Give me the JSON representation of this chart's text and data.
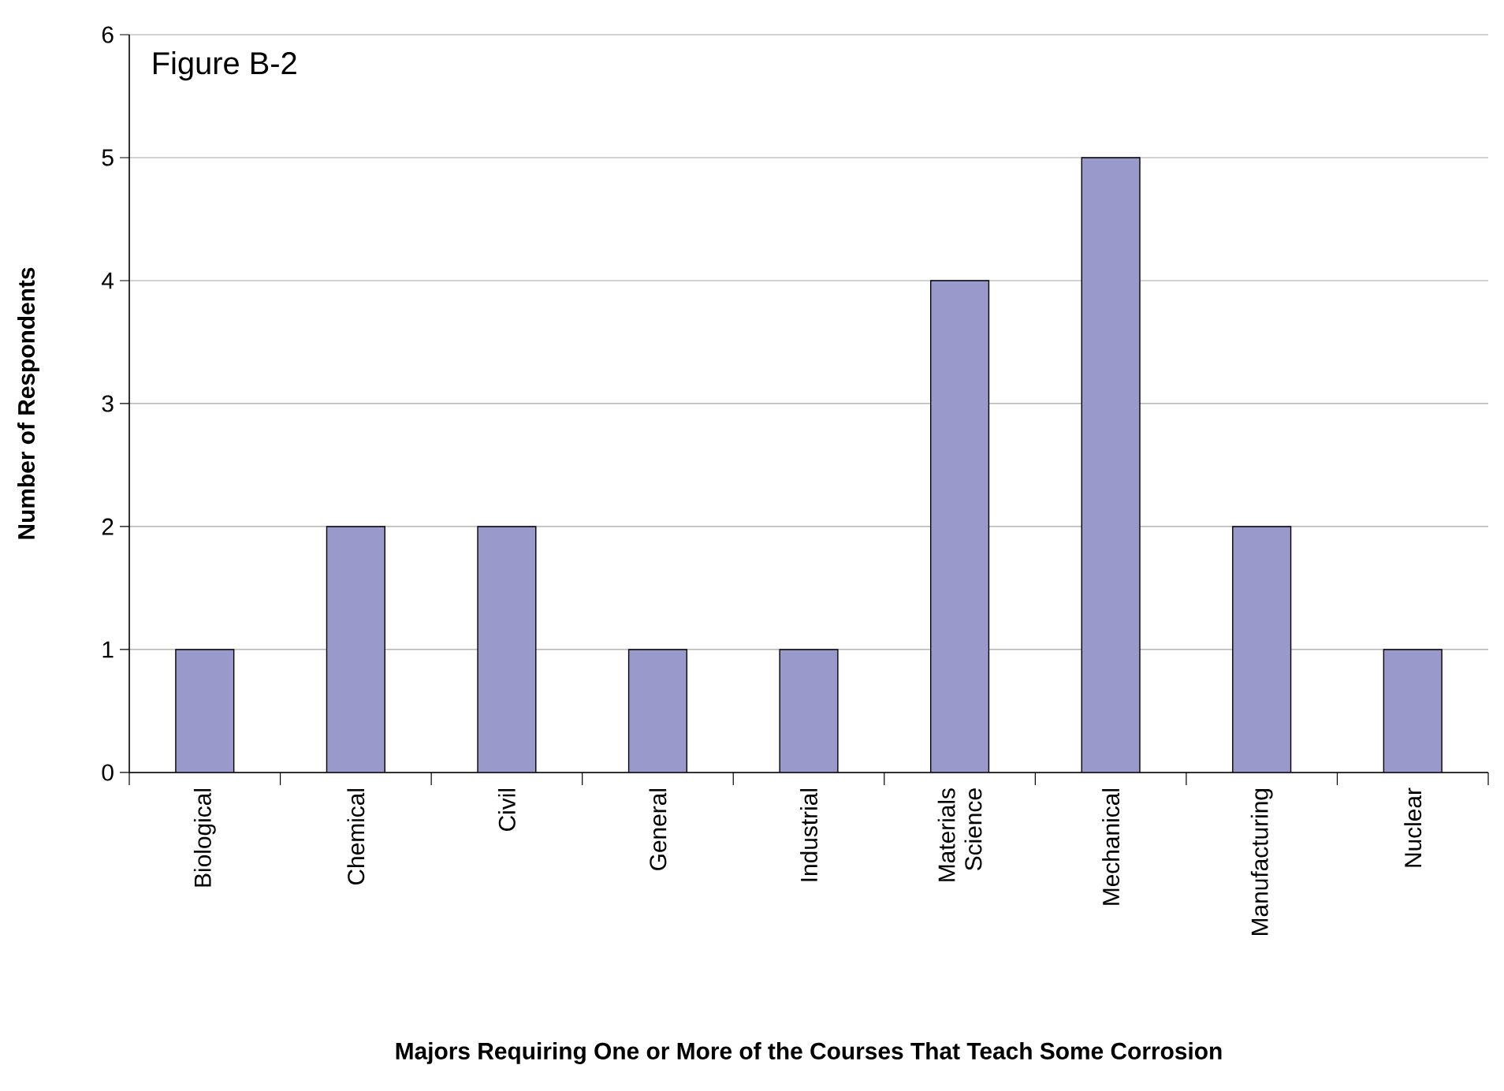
{
  "chart_data": {
    "type": "bar",
    "title": "Figure B-2",
    "xlabel": "Majors Requiring One or More of the Courses That Teach Some Corrosion",
    "ylabel": "Number of Respondents",
    "categories": [
      "Biological",
      "Chemical",
      "Civil",
      "General",
      "Industrial",
      "Materials Science",
      "Mechanical",
      "Manufacturing",
      "Nuclear"
    ],
    "values": [
      1,
      2,
      2,
      1,
      1,
      4,
      5,
      2,
      1
    ],
    "color": "#9999cc",
    "ylim": [
      0,
      6
    ],
    "yticks": [
      0,
      1,
      2,
      3,
      4,
      5,
      6
    ],
    "grid": "y"
  }
}
